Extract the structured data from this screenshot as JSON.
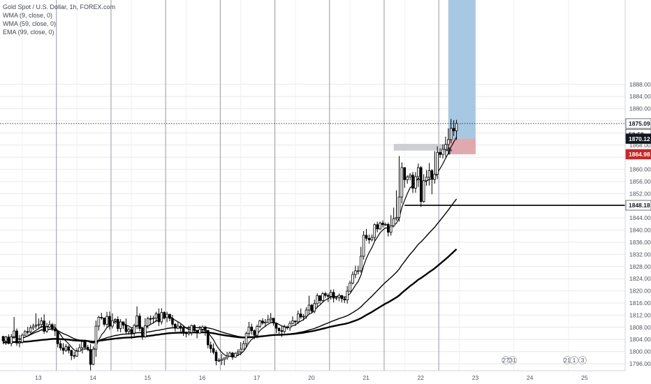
{
  "legend": {
    "title": "Gold Spot / U.S. Dollar, 1h, FOREX.com",
    "indicators": [
      "WMA (9, close, 0)",
      "WMA (59, close, 0)",
      "EMA (99, close, 0)"
    ]
  },
  "price_tags": {
    "current": "1875.09",
    "countdown": "52:50",
    "entry": "1870.12",
    "stop": "1864.98",
    "support": "1848.18"
  },
  "event_badges": [
    "27",
    "31",
    "21",
    "1",
    "3"
  ],
  "colors": {
    "up": "#ffffff",
    "down": "#000000",
    "target_zone": "#a7c8e3",
    "stop_zone": "#e0a9ad",
    "stop_tag": "#c62828",
    "tag_dark": "#131722",
    "grid": "#e8e8ec",
    "session_line": "#9598a1"
  },
  "chart_data": {
    "type": "candlestick",
    "symbol": "XAUUSD",
    "title": "Gold Spot / U.S. Dollar, 1h, FOREX.com",
    "interval": "1h",
    "ylim": [
      1794.5,
      1890.8
    ],
    "yticks": [
      1796,
      1800,
      1804,
      1808,
      1812,
      1816,
      1820,
      1824,
      1828,
      1832,
      1836,
      1840,
      1844,
      1848,
      1852,
      1856,
      1860,
      1864,
      1868,
      1872,
      1876,
      1880,
      1884,
      1888
    ],
    "xticks": [
      "13",
      "14",
      "15",
      "16",
      "17",
      "20",
      "21",
      "22",
      "23",
      "24",
      "25"
    ],
    "xlim": [
      0,
      213
    ],
    "xtick_positions": [
      7,
      27,
      47,
      67,
      87,
      107,
      127,
      147,
      167,
      187,
      207
    ],
    "session_breaks": [
      19.5,
      39.5,
      59.5,
      79.5,
      99.5,
      119.5,
      139.5,
      159.5
    ],
    "grid": true,
    "price_levels": {
      "current": 1875.09,
      "entry": 1870.12,
      "stop": 1864.98,
      "support": 1848.18,
      "target_top": 1890.8
    },
    "position_zone": {
      "from_index": 163,
      "to_index": 173,
      "entry": 1870.12,
      "target": 1890.8,
      "stop": 1864.98
    },
    "grey_zone": {
      "from_index": 143,
      "to_index": 163,
      "high": 1868.4,
      "low": 1866.2
    },
    "series": [
      {
        "name": "XAUUSD",
        "kind": "ohlc",
        "close": [
          1803.5,
          1804.8,
          1802.7,
          1804.9,
          1806.8,
          1802.8,
          1803.1,
          1805.4,
          1806.6,
          1806.5,
          1807.8,
          1808.4,
          1808.7,
          1808.9,
          1810.1,
          1806.7,
          1808.1,
          1808.9,
          1807.5,
          1806.8,
          1802.6,
          1801.2,
          1800.4,
          1801.6,
          1800.4,
          1798.7,
          1798.5,
          1800.1,
          1801.3,
          1803.3,
          1801.4,
          1800.7,
          1795.8,
          1800.8,
          1808.4,
          1811.3,
          1811.1,
          1809.0,
          1811.6,
          1808.4,
          1810.2,
          1810.6,
          1807.6,
          1809.8,
          1808.7,
          1806.6,
          1807.3,
          1806.1,
          1808.6,
          1811.7,
          1807.6,
          1804.9,
          1808.5,
          1810.9,
          1810.8,
          1811.0,
          1812.4,
          1809.8,
          1812.9,
          1811.2,
          1812.3,
          1810.9,
          1809.0,
          1807.7,
          1808.4,
          1807.7,
          1806.2,
          1805.9,
          1806.3,
          1808.6,
          1806.9,
          1806.1,
          1807.4,
          1808.1,
          1807.0,
          1802.2,
          1801.0,
          1799.8,
          1797.0,
          1797.1,
          1797.4,
          1797.9,
          1798.5,
          1799.5,
          1798.2,
          1799.4,
          1799.9,
          1800.8,
          1802.6,
          1806.0,
          1808.1,
          1806.9,
          1805.4,
          1808.3,
          1810.1,
          1809.4,
          1809.7,
          1810.5,
          1811.0,
          1809.4,
          1807.7,
          1806.9,
          1806.6,
          1808.1,
          1807.8,
          1809.3,
          1810.1,
          1809.8,
          1812.4,
          1811.4,
          1811.6,
          1813.7,
          1815.3,
          1813.3,
          1815.8,
          1818.4,
          1816.8,
          1819.1,
          1818.5,
          1818.2,
          1819.5,
          1817.6,
          1817.8,
          1818.5,
          1817.4,
          1817.0,
          1819.9,
          1822.6,
          1825.4,
          1826.6,
          1826.6,
          1831.4,
          1838.3,
          1837.3,
          1836.8,
          1837.6,
          1841.8,
          1840.4,
          1842.3,
          1841.8,
          1841.9,
          1839.3,
          1841.4,
          1843.8,
          1844.2,
          1850.9,
          1860.6,
          1856.6,
          1857.5,
          1858.1,
          1853.8,
          1857.6,
          1860.6,
          1849.4,
          1856.3,
          1857.4,
          1859.6,
          1856.7,
          1858.4,
          1865.6,
          1864.9,
          1866.6,
          1868.2,
          1869.8,
          1873.5,
          1872.7,
          1875.1
        ],
        "high": [
          1805.2,
          1805.2,
          1805.7,
          1805.8,
          1811.4,
          1807.6,
          1805.5,
          1806.0,
          1807.1,
          1808.2,
          1808.7,
          1809.2,
          1812.6,
          1810.9,
          1811.3,
          1812.3,
          1809.5,
          1810.2,
          1809.4,
          1809.1,
          1807.0,
          1803.7,
          1802.8,
          1802.5,
          1802.1,
          1800.6,
          1800.0,
          1801.2,
          1802.5,
          1803.7,
          1804.0,
          1802.2,
          1802.5,
          1801.7,
          1810.2,
          1811.8,
          1812.8,
          1811.1,
          1813.1,
          1813.2,
          1812.6,
          1811.0,
          1811.6,
          1810.7,
          1809.5,
          1810.9,
          1807.9,
          1807.7,
          1809.2,
          1814.9,
          1812.6,
          1808.2,
          1811.0,
          1811.5,
          1811.9,
          1811.8,
          1813.1,
          1814.2,
          1814.3,
          1813.3,
          1813.1,
          1812.4,
          1812.1,
          1809.4,
          1809.7,
          1809.1,
          1808.6,
          1806.5,
          1808.5,
          1808.9,
          1809.0,
          1807.3,
          1808.5,
          1808.7,
          1808.5,
          1807.0,
          1803.3,
          1802.7,
          1800.5,
          1797.9,
          1799.2,
          1798.1,
          1799.9,
          1800.0,
          1799.9,
          1799.8,
          1800.8,
          1803.1,
          1803.6,
          1806.6,
          1809.8,
          1809.2,
          1807.3,
          1808.9,
          1810.5,
          1811.0,
          1810.7,
          1812.1,
          1812.7,
          1810.9,
          1809.2,
          1807.9,
          1808.3,
          1808.9,
          1808.6,
          1810.1,
          1811.6,
          1810.2,
          1813.5,
          1814.2,
          1812.4,
          1814.6,
          1818.4,
          1815.7,
          1817.1,
          1819.2,
          1818.6,
          1819.6,
          1819.7,
          1819.2,
          1820.4,
          1820.5,
          1818.1,
          1819.1,
          1818.6,
          1818.2,
          1821.6,
          1823.4,
          1826.4,
          1828.3,
          1828.3,
          1834.5,
          1839.7,
          1840.4,
          1838.5,
          1838.6,
          1842.2,
          1842.8,
          1842.8,
          1843.2,
          1842.5,
          1842.5,
          1844.9,
          1847.4,
          1853.1,
          1864.4,
          1862.3,
          1860.5,
          1858.1,
          1858.8,
          1859.2,
          1859.1,
          1861.9,
          1861.1,
          1858.4,
          1859.8,
          1862.1,
          1860.1,
          1866.0,
          1867.6,
          1866.9,
          1868.2,
          1870.8,
          1873.5,
          1876.6,
          1876.2,
          1876.3
        ],
        "low": [
          1802.4,
          1802.2,
          1802.4,
          1801.8,
          1804.2,
          1801.9,
          1801.4,
          1802.6,
          1805.2,
          1805.6,
          1806.1,
          1807.1,
          1807.5,
          1807.7,
          1807.7,
          1805.9,
          1806.1,
          1807.7,
          1806.8,
          1805.1,
          1801.4,
          1800.4,
          1799.1,
          1799.9,
          1799.4,
          1797.2,
          1797.6,
          1798.3,
          1800.6,
          1799.4,
          1800.6,
          1800.2,
          1793.6,
          1795.5,
          1798.3,
          1806.9,
          1810.5,
          1808.3,
          1808.1,
          1807.2,
          1807.6,
          1809.1,
          1806.6,
          1806.4,
          1807.5,
          1805.6,
          1805.6,
          1804.2,
          1805.1,
          1807.4,
          1806.7,
          1803.9,
          1804.6,
          1807.6,
          1808.9,
          1809.2,
          1809.7,
          1808.4,
          1808.9,
          1810.6,
          1809.7,
          1810.0,
          1808.1,
          1806.6,
          1807.4,
          1806.6,
          1805.2,
          1804.7,
          1805.3,
          1805.3,
          1806.3,
          1804.4,
          1805.9,
          1806.4,
          1805.2,
          1801.1,
          1799.6,
          1799.1,
          1795.5,
          1796.6,
          1795.6,
          1795.5,
          1797.3,
          1798.4,
          1797.3,
          1798.0,
          1798.5,
          1798.8,
          1800.8,
          1801.6,
          1805.1,
          1805.6,
          1804.1,
          1804.4,
          1807.7,
          1808.8,
          1808.1,
          1809.4,
          1809.4,
          1808.5,
          1806.1,
          1805.9,
          1804.8,
          1806.0,
          1807.2,
          1806.8,
          1808.9,
          1808.5,
          1809.1,
          1810.8,
          1810.2,
          1810.8,
          1812.5,
          1812.6,
          1812.6,
          1814.3,
          1815.7,
          1816.2,
          1817.7,
          1816.3,
          1817.1,
          1816.2,
          1816.9,
          1816.6,
          1816.2,
          1816.0,
          1815.8,
          1819.6,
          1822.1,
          1824.2,
          1825.4,
          1826.0,
          1830.3,
          1836.5,
          1835.5,
          1836.3,
          1836.5,
          1839.3,
          1840.1,
          1840.9,
          1841.4,
          1837.9,
          1838.2,
          1840.9,
          1843.1,
          1842.8,
          1848.8,
          1853.9,
          1855.3,
          1856.4,
          1852.2,
          1852.3,
          1854.2,
          1847.6,
          1849.0,
          1854.6,
          1854.7,
          1851.8,
          1855.3,
          1856.8,
          1863.8,
          1863.6,
          1864.1,
          1866.7,
          1868.6,
          1871.0,
          1869.7
        ],
        "open": [
          1805.0,
          1803.5,
          1804.8,
          1802.7,
          1804.9,
          1806.8,
          1802.8,
          1803.1,
          1805.4,
          1806.6,
          1806.5,
          1807.8,
          1808.4,
          1808.7,
          1808.9,
          1810.1,
          1806.7,
          1808.1,
          1808.9,
          1807.5,
          1806.8,
          1802.6,
          1801.2,
          1800.4,
          1801.6,
          1800.4,
          1798.7,
          1798.5,
          1800.1,
          1801.3,
          1803.3,
          1801.4,
          1800.7,
          1795.8,
          1800.8,
          1808.4,
          1811.3,
          1811.1,
          1809.0,
          1811.6,
          1808.4,
          1810.2,
          1810.6,
          1807.6,
          1809.8,
          1808.7,
          1806.6,
          1807.3,
          1806.1,
          1808.6,
          1811.7,
          1807.6,
          1804.9,
          1808.5,
          1810.9,
          1810.8,
          1811.0,
          1812.4,
          1809.8,
          1812.9,
          1811.2,
          1812.3,
          1810.9,
          1809.0,
          1807.7,
          1808.4,
          1807.7,
          1806.2,
          1805.9,
          1806.3,
          1808.6,
          1806.9,
          1806.1,
          1807.4,
          1808.1,
          1807.0,
          1802.2,
          1801.0,
          1799.8,
          1797.0,
          1797.1,
          1797.4,
          1797.9,
          1798.5,
          1799.5,
          1798.2,
          1799.4,
          1799.9,
          1800.8,
          1802.6,
          1806.0,
          1808.1,
          1806.9,
          1805.4,
          1808.3,
          1810.1,
          1809.4,
          1809.7,
          1810.5,
          1811.0,
          1809.4,
          1807.7,
          1806.9,
          1806.6,
          1808.1,
          1807.8,
          1809.3,
          1810.1,
          1809.8,
          1812.4,
          1811.4,
          1811.6,
          1813.7,
          1815.3,
          1813.3,
          1815.8,
          1818.4,
          1816.8,
          1819.1,
          1818.5,
          1818.2,
          1819.5,
          1817.6,
          1817.8,
          1818.5,
          1817.4,
          1817.0,
          1819.9,
          1822.6,
          1825.4,
          1826.6,
          1826.6,
          1831.4,
          1838.3,
          1837.3,
          1836.8,
          1837.6,
          1841.8,
          1840.4,
          1842.3,
          1841.8,
          1841.9,
          1839.3,
          1841.4,
          1843.8,
          1844.2,
          1850.9,
          1860.6,
          1856.6,
          1857.5,
          1858.1,
          1853.8,
          1857.6,
          1860.6,
          1849.4,
          1856.3,
          1857.4,
          1859.6,
          1856.7,
          1858.4,
          1865.6,
          1864.9,
          1866.6,
          1868.2,
          1869.8,
          1873.5,
          1872.7
        ]
      },
      {
        "name": "WMA (9, close, 0)",
        "kind": "line",
        "width": 1.2
      },
      {
        "name": "WMA (59, close, 0)",
        "kind": "line",
        "width": 1.4
      },
      {
        "name": "EMA (99, close, 0)",
        "kind": "line",
        "width": 2.4
      }
    ]
  }
}
